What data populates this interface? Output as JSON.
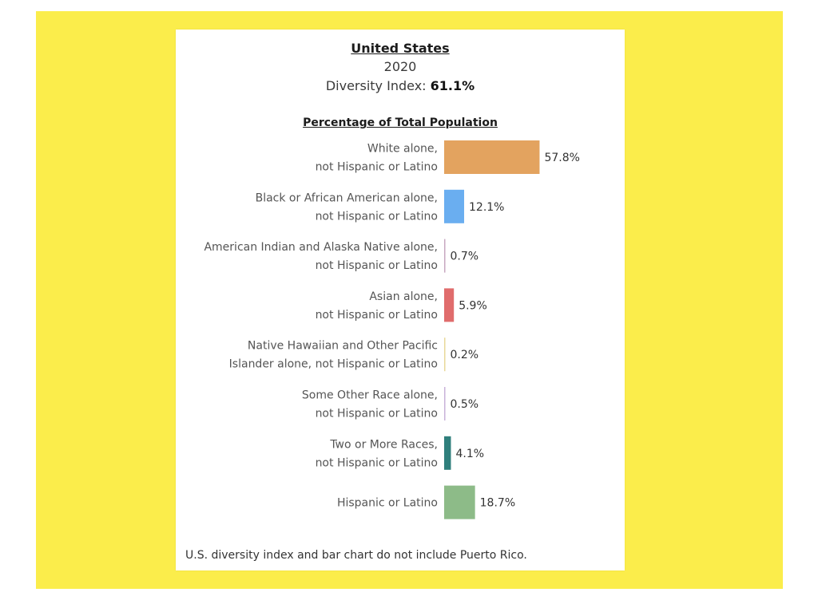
{
  "header": {
    "title": "United States",
    "year": "2020",
    "diversity_label": "Diversity Index:",
    "diversity_value": "61.1%"
  },
  "footnote": "U.S. diversity index and bar chart do not include Puerto Rico.",
  "colors": {
    "background": "#fbed4b",
    "card": "#ffffff"
  },
  "chart_data": {
    "type": "bar",
    "orientation": "horizontal",
    "title": "Percentage of Total Population",
    "xlim": [
      0,
      60
    ],
    "grid": false,
    "legend": "none",
    "categories": [
      [
        "White alone,",
        "not Hispanic or Latino"
      ],
      [
        "Black or African American alone,",
        "not Hispanic or Latino"
      ],
      [
        "American Indian and Alaska Native alone,",
        "not Hispanic or Latino"
      ],
      [
        "Asian alone,",
        "not Hispanic or Latino"
      ],
      [
        "Native Hawaiian and Other Pacific",
        "Islander alone, not Hispanic or Latino"
      ],
      [
        "Some Other Race alone,",
        "not Hispanic or Latino"
      ],
      [
        "Two or More Races,",
        "not Hispanic or Latino"
      ],
      [
        "Hispanic or Latino"
      ]
    ],
    "values": [
      57.8,
      12.1,
      0.7,
      5.9,
      0.2,
      0.5,
      4.1,
      18.7
    ],
    "value_labels": [
      "57.8%",
      "12.1%",
      "0.7%",
      "5.9%",
      "0.2%",
      "0.5%",
      "4.1%",
      "18.7%"
    ],
    "colors": [
      "#e3a35f",
      "#6aaef0",
      "#c8a8c0",
      "#e06c6c",
      "#e8d89a",
      "#c9b2d9",
      "#2f7f7c",
      "#8dbb88"
    ]
  }
}
